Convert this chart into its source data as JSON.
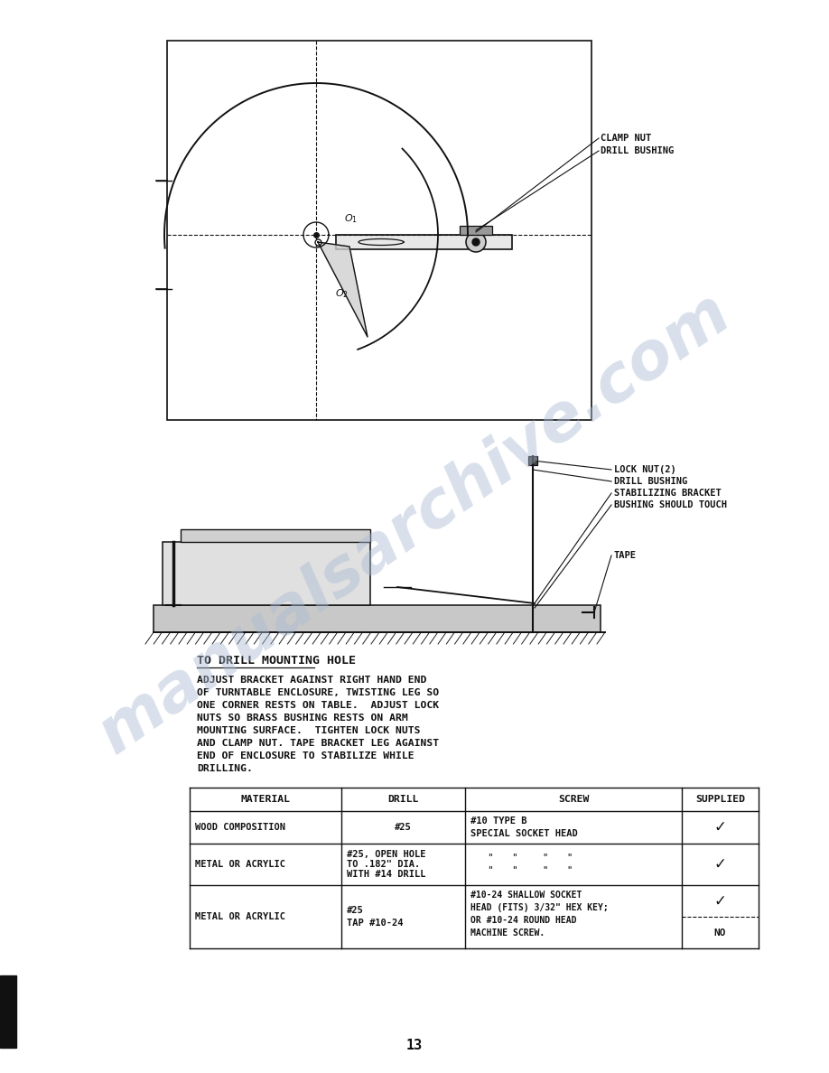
{
  "page_number": "13",
  "background_color": "#ffffff",
  "watermark_text": "manualsarchive.com",
  "watermark_color": "#aabbd4",
  "watermark_alpha": 0.45,
  "section_title": "TO DRILL MOUNTING HOLE",
  "body_text": "ADJUST BRACKET AGAINST RIGHT HAND END\nOF TURNTABLE ENCLOSURE, TWISTING LEG SO\nONE CORNER RESTS ON TABLE.  ADJUST LOCK\nNUTS SO BRASS BUSHING RESTS ON ARM\nMOUNTING SURFACE.  TIGHTEN LOCK NUTS\nAND CLAMP NUT. TAPE BRACKET LEG AGAINST\nEND OF ENCLOSURE TO STABILIZE WHILE\nDRILLING.",
  "table": {
    "col_headers": [
      "MATERIAL",
      "DRILL",
      "SCREW",
      "SUPPLIED"
    ],
    "rows": [
      {
        "material": "WOOD COMPOSITION",
        "drill": "#25",
        "screw_line1": "#10 TYPE B",
        "screw_line2": "SPECIAL SOCKET HEAD",
        "supplied": "✓"
      },
      {
        "material": "METAL OR ACRYLIC",
        "drill_line1": "#25, OPEN HOLE",
        "drill_line2": "TO .182\" DIA.",
        "drill_line3": "WITH #14 DRILL",
        "screw_line1": "\"   \"    \"   \"",
        "screw_line2": "\"   \"    \"   \"",
        "supplied": "✓"
      },
      {
        "material": "METAL OR ACRYLIC",
        "drill_line1": "#25",
        "drill_line2": "TAP #10-24",
        "screw_line1": "#10-24 SHALLOW SOCKET",
        "screw_line2": "HEAD (FITS) 3/32\" HEX KEY;",
        "screw_line3": "OR #10-24 ROUND HEAD",
        "screw_line4": "MACHINE SCREW.",
        "supplied_top": "✓",
        "supplied_bottom": "NO"
      }
    ]
  },
  "left_bar_color": "#111111",
  "text_color": "#111111",
  "line_color": "#111111",
  "font_family": "monospace"
}
